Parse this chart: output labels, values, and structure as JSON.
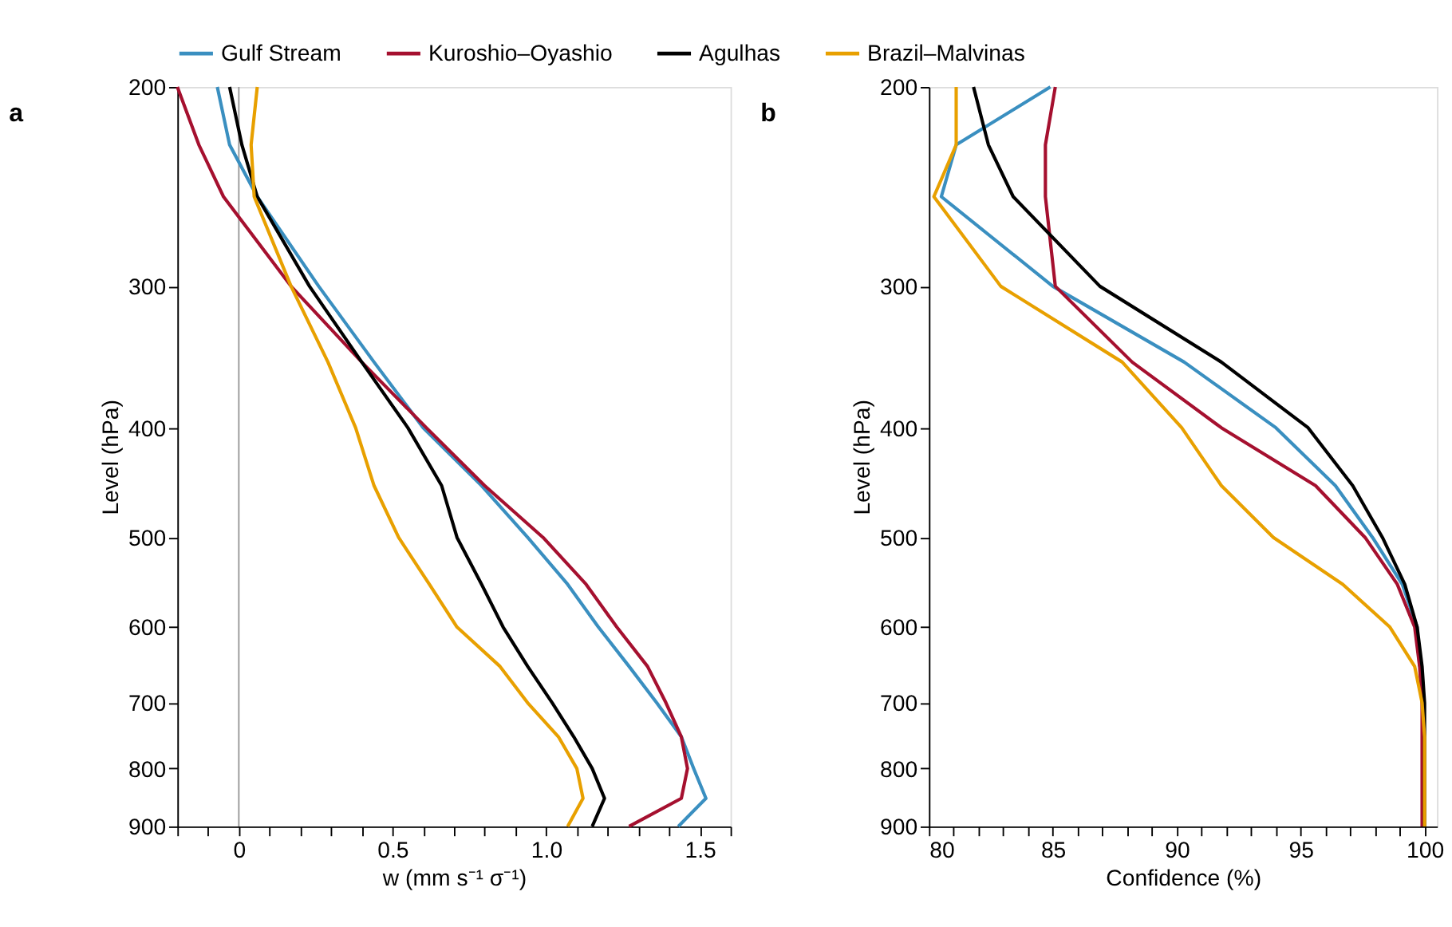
{
  "chart_data": [
    {
      "type": "line",
      "title": "a",
      "xlabel": "w (mm s⁻¹ σ⁻¹)",
      "ylabel": "Level (hPa)",
      "legend": "top",
      "grid": false,
      "log": "y",
      "xlim": [
        -0.2,
        1.6
      ],
      "xticks": [
        {
          "value": -0.2,
          "label": null
        },
        {
          "value": -0.1,
          "label": null
        },
        0,
        {
          "value": 0.1,
          "label": null
        },
        {
          "value": 0.2,
          "label": null
        },
        {
          "value": 0.3,
          "label": null
        },
        {
          "value": 0.4,
          "label": null
        },
        0.5,
        {
          "value": 0.6,
          "label": null
        },
        {
          "value": 0.7,
          "label": null
        },
        {
          "value": 0.8,
          "label": null
        },
        {
          "value": 0.9,
          "label": null
        },
        {
          "value": 1,
          "label": "1.0"
        },
        {
          "value": 1.1,
          "label": null
        },
        {
          "value": 1.2,
          "label": null
        },
        {
          "value": 1.3,
          "label": null
        },
        {
          "value": 1.4,
          "label": null
        },
        1.5,
        {
          "value": 1.6,
          "label": null
        }
      ],
      "ylim": [
        900,
        200
      ],
      "yticks": [
        200,
        300,
        400,
        500,
        600,
        700,
        800,
        900
      ],
      "ref_lines": [
        {
          "axis": "x",
          "value": 0,
          "color": "#999999"
        }
      ],
      "series": [
        {
          "name": "Gulf Stream",
          "color": "#3a8fc0",
          "x": [
            -0.07,
            -0.03,
            0.06,
            0.26,
            0.44,
            0.6,
            0.79,
            0.94,
            1.07,
            1.17,
            1.27,
            1.36,
            1.44,
            1.48,
            1.52,
            1.43
          ],
          "values": [
            200,
            225,
            250,
            300,
            350,
            400,
            450,
            500,
            550,
            600,
            650,
            700,
            750,
            800,
            850,
            900
          ]
        },
        {
          "name": "Kuroshio–Oyashio",
          "color": "#a5102f",
          "x": [
            -0.2,
            -0.13,
            -0.05,
            0.17,
            0.4,
            0.61,
            0.8,
            0.99,
            1.13,
            1.23,
            1.33,
            1.39,
            1.44,
            1.46,
            1.44,
            1.27
          ],
          "values": [
            200,
            225,
            250,
            300,
            350,
            400,
            450,
            500,
            550,
            600,
            650,
            700,
            750,
            800,
            850,
            900
          ]
        },
        {
          "name": "Agulhas",
          "color": "#000000",
          "x": [
            -0.03,
            0.01,
            0.06,
            0.23,
            0.4,
            0.55,
            0.66,
            0.71,
            0.79,
            0.86,
            0.94,
            1.02,
            1.09,
            1.15,
            1.19,
            1.15
          ],
          "values": [
            200,
            225,
            250,
            300,
            350,
            400,
            450,
            500,
            550,
            600,
            650,
            700,
            750,
            800,
            850,
            900
          ]
        },
        {
          "name": "Brazil–Malvinas",
          "color": "#e8a000",
          "x": [
            0.06,
            0.04,
            0.05,
            0.17,
            0.29,
            0.38,
            0.44,
            0.52,
            0.62,
            0.71,
            0.85,
            0.94,
            1.04,
            1.1,
            1.12,
            1.07
          ],
          "values": [
            200,
            225,
            250,
            300,
            350,
            400,
            450,
            500,
            550,
            600,
            650,
            700,
            750,
            800,
            850,
            900
          ]
        }
      ]
    },
    {
      "type": "line",
      "title": "b",
      "xlabel": "Confidence (%)",
      "ylabel": "Level (hPa)",
      "legend": "top",
      "grid": false,
      "log": "y",
      "xlim": [
        80,
        100.5
      ],
      "xticks": [
        80,
        {
          "value": 81,
          "label": null
        },
        {
          "value": 82,
          "label": null
        },
        {
          "value": 83,
          "label": null
        },
        {
          "value": 84,
          "label": null
        },
        85,
        {
          "value": 86,
          "label": null
        },
        {
          "value": 87,
          "label": null
        },
        {
          "value": 88,
          "label": null
        },
        {
          "value": 89,
          "label": null
        },
        90,
        {
          "value": 91,
          "label": null
        },
        {
          "value": 92,
          "label": null
        },
        {
          "value": 93,
          "label": null
        },
        {
          "value": 94,
          "label": null
        },
        95,
        {
          "value": 96,
          "label": null
        },
        {
          "value": 97,
          "label": null
        },
        {
          "value": 98,
          "label": null
        },
        {
          "value": 99,
          "label": null
        },
        100
      ],
      "ylim": [
        900,
        200
      ],
      "yticks": [
        200,
        300,
        400,
        500,
        600,
        700,
        800,
        900
      ],
      "series": [
        {
          "name": "Gulf Stream",
          "color": "#3a8fc0",
          "x": [
            84.9,
            81.1,
            80.5,
            85.0,
            90.3,
            94.0,
            96.4,
            97.9,
            99.1,
            99.7,
            99.8
          ],
          "values": [
            200,
            225,
            250,
            300,
            350,
            400,
            450,
            500,
            550,
            600,
            650
          ]
        },
        {
          "name": "Kuroshio–Oyashio",
          "color": "#a5102f",
          "x": [
            85.1,
            84.7,
            84.7,
            85.1,
            88.2,
            91.8,
            95.6,
            97.6,
            98.9,
            99.6,
            99.8,
            99.9,
            99.9,
            99.9,
            99.9,
            99.9
          ],
          "values": [
            200,
            225,
            250,
            300,
            350,
            400,
            450,
            500,
            550,
            600,
            650,
            700,
            750,
            800,
            850,
            900
          ]
        },
        {
          "name": "Agulhas",
          "color": "#000000",
          "x": [
            81.8,
            82.4,
            83.4,
            86.9,
            91.8,
            95.3,
            97.1,
            98.3,
            99.2,
            99.7,
            99.9,
            100,
            100,
            100,
            100,
            100
          ],
          "values": [
            200,
            225,
            250,
            300,
            350,
            400,
            450,
            500,
            550,
            600,
            650,
            700,
            750,
            800,
            850,
            900
          ]
        },
        {
          "name": "Brazil–Malvinas",
          "color": "#e8a000",
          "x": [
            81.1,
            81.1,
            80.2,
            82.9,
            87.8,
            90.2,
            91.8,
            93.9,
            96.7,
            98.6,
            99.6,
            99.9,
            100,
            100,
            100,
            100
          ],
          "values": [
            200,
            225,
            250,
            300,
            350,
            400,
            450,
            500,
            550,
            600,
            650,
            700,
            750,
            800,
            850,
            900
          ]
        }
      ]
    }
  ]
}
